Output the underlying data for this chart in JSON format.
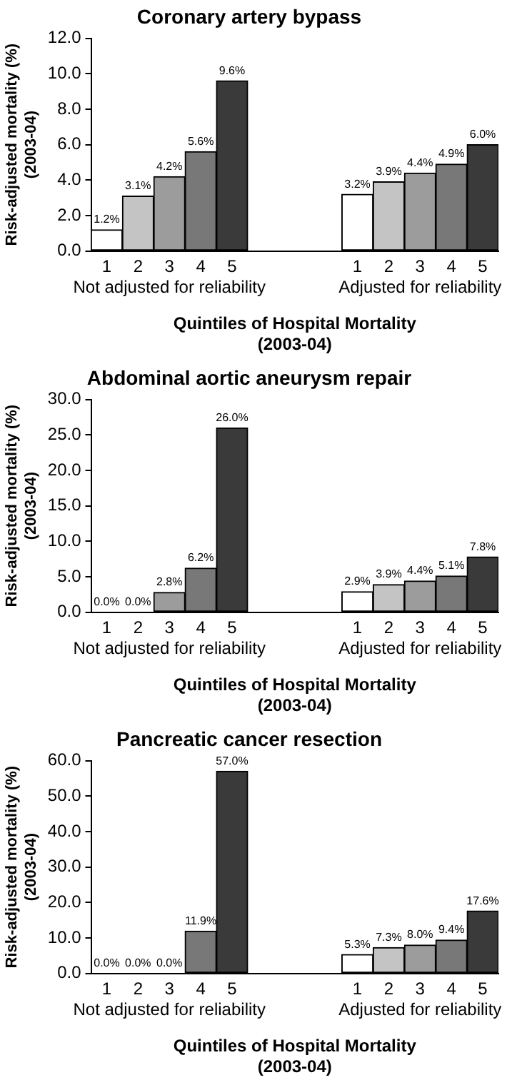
{
  "chart_data": [
    {
      "type": "bar",
      "title": "Coronary artery bypass",
      "ylabel": "Risk-adjusted mortality (%)\n(2003-04)",
      "xlabel": "Quintiles of Hospital Mortality\n(2003-04)",
      "categories": [
        "1",
        "2",
        "3",
        "4",
        "5",
        null,
        null,
        null,
        "1",
        "2",
        "3",
        "4",
        "5"
      ],
      "values": [
        1.2,
        3.1,
        4.2,
        5.6,
        9.6,
        null,
        null,
        null,
        3.2,
        3.9,
        4.4,
        4.9,
        6.0
      ],
      "value_labels": [
        "1.2%",
        "3.1%",
        "4.2%",
        "5.6%",
        "9.6%",
        null,
        null,
        null,
        "3.2%",
        "3.9%",
        "4.4%",
        "4.9%",
        "6.0%"
      ],
      "colors": [
        "#ffffff",
        "#c4c4c4",
        "#9c9c9c",
        "#787878",
        "#3a3a3a",
        "#ffffff",
        "#ffffff",
        "#ffffff",
        "#ffffff",
        "#c4c4c4",
        "#9c9c9c",
        "#787878",
        "#3a3a3a"
      ],
      "ylim": [
        0,
        12
      ],
      "yticks": [
        {
          "value": 0,
          "label": "0.0"
        },
        {
          "value": 2,
          "label": "2.0"
        },
        {
          "value": 4,
          "label": "4.0"
        },
        {
          "value": 6,
          "label": "6.0"
        },
        {
          "value": 8,
          "label": "8.0"
        },
        {
          "value": 10,
          "label": "10.0"
        },
        {
          "value": 12,
          "label": "12.0"
        }
      ],
      "annotations": [
        "Not adjusted for reliability",
        "Adjusted for reliability"
      ],
      "grid": false,
      "legend": false
    },
    {
      "type": "bar",
      "title": "Abdominal aortic aneurysm repair",
      "ylabel": "Risk-adjusted mortality (%)\n(2003-04)",
      "xlabel": "Quintiles of Hospital Mortality\n(2003-04)",
      "categories": [
        "1",
        "2",
        "3",
        "4",
        "5",
        null,
        null,
        null,
        "1",
        "2",
        "3",
        "4",
        "5"
      ],
      "values": [
        0.0,
        0.0,
        2.8,
        6.2,
        26.0,
        null,
        null,
        null,
        2.9,
        3.9,
        4.4,
        5.1,
        7.8
      ],
      "value_labels": [
        "0.0%",
        "0.0%",
        "2.8%",
        "6.2%",
        "26.0%",
        null,
        null,
        null,
        "2.9%",
        "3.9%",
        "4.4%",
        "5.1%",
        "7.8%"
      ],
      "colors": [
        "#ffffff",
        "#c4c4c4",
        "#9c9c9c",
        "#787878",
        "#3a3a3a",
        "#ffffff",
        "#ffffff",
        "#ffffff",
        "#ffffff",
        "#c4c4c4",
        "#9c9c9c",
        "#787878",
        "#3a3a3a"
      ],
      "ylim": [
        0,
        30
      ],
      "yticks": [
        {
          "value": 0,
          "label": "0.0"
        },
        {
          "value": 5,
          "label": "5.0"
        },
        {
          "value": 10,
          "label": "10.0"
        },
        {
          "value": 15,
          "label": "15.0"
        },
        {
          "value": 20,
          "label": "20.0"
        },
        {
          "value": 25,
          "label": "25.0"
        },
        {
          "value": 30,
          "label": "30.0"
        }
      ],
      "annotations": [
        "Not adjusted for reliability",
        "Adjusted for reliability"
      ],
      "grid": false,
      "legend": false
    },
    {
      "type": "bar",
      "title": "Pancreatic cancer resection",
      "ylabel": "Risk-adjusted mortality (%)\n(2003-04)",
      "xlabel": "Quintiles of Hospital Mortality\n(2003-04)",
      "categories": [
        "1",
        "2",
        "3",
        "4",
        "5",
        null,
        null,
        null,
        "1",
        "2",
        "3",
        "4",
        "5"
      ],
      "values": [
        0.0,
        0.0,
        0.0,
        11.9,
        57.0,
        null,
        null,
        null,
        5.3,
        7.3,
        8.0,
        9.4,
        17.6
      ],
      "value_labels": [
        "0.0%",
        "0.0%",
        "0.0%",
        "11.9%",
        "57.0%",
        null,
        null,
        null,
        "5.3%",
        "7.3%",
        "8.0%",
        "9.4%",
        "17.6%"
      ],
      "colors": [
        "#ffffff",
        "#c4c4c4",
        "#9c9c9c",
        "#787878",
        "#3a3a3a",
        "#ffffff",
        "#ffffff",
        "#ffffff",
        "#ffffff",
        "#c4c4c4",
        "#9c9c9c",
        "#787878",
        "#3a3a3a"
      ],
      "ylim": [
        0,
        60
      ],
      "yticks": [
        {
          "value": 0,
          "label": "0.0"
        },
        {
          "value": 10,
          "label": "10.0"
        },
        {
          "value": 20,
          "label": "20.0"
        },
        {
          "value": 30,
          "label": "30.0"
        },
        {
          "value": 40,
          "label": "40.0"
        },
        {
          "value": 50,
          "label": "50.0"
        },
        {
          "value": 60,
          "label": "60.0"
        }
      ],
      "annotations": [
        "Not adjusted for reliability",
        "Adjusted for reliability"
      ],
      "grid": false,
      "legend": false
    }
  ]
}
